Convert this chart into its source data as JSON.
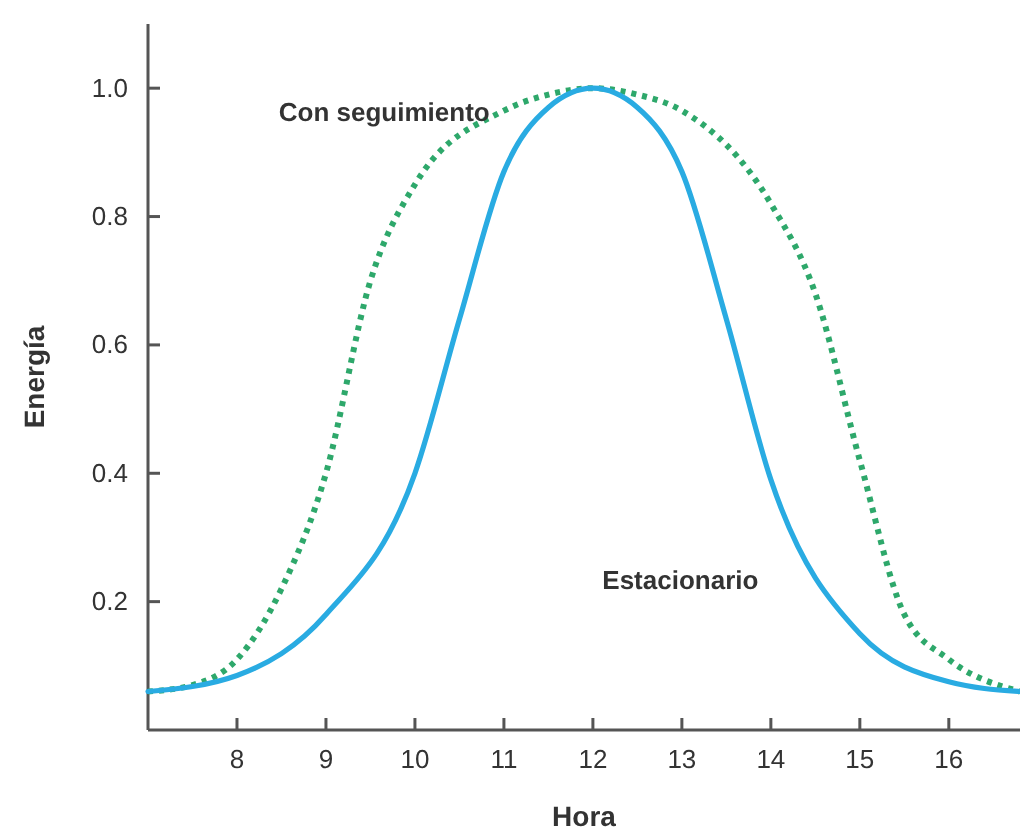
{
  "chart_data": {
    "type": "line",
    "xlabel": "Hora",
    "ylabel": "Energía",
    "xlim": [
      7,
      16.8
    ],
    "ylim": [
      0,
      1.1
    ],
    "xticks": [
      8,
      9,
      10,
      11,
      12,
      13,
      14,
      15,
      16
    ],
    "yticks": [
      {
        "value": 0.2,
        "label": "0.2"
      },
      {
        "value": 0.4,
        "label": "0.4"
      },
      {
        "value": 0.6,
        "label": "0.6"
      },
      {
        "value": 0.8,
        "label": "0.8"
      },
      {
        "value": 1,
        "label": "1.0"
      }
    ],
    "grid": false,
    "legend": false,
    "marker": "none",
    "series": [
      {
        "name": "Con seguimiento",
        "color": "#2ea86b",
        "line_style": "dotted",
        "x": [
          7,
          7.5,
          8,
          8.5,
          9,
          9.5,
          10,
          11,
          11.5,
          12,
          12.5,
          13,
          14,
          14.5,
          15,
          15.5,
          16,
          16.8
        ],
        "values": [
          0.06,
          0.07,
          0.11,
          0.22,
          0.4,
          0.7,
          0.85,
          0.965,
          0.99,
          1.0,
          0.99,
          0.965,
          0.82,
          0.68,
          0.42,
          0.18,
          0.11,
          0.06
        ]
      },
      {
        "name": "Estacionario",
        "color": "#29abe2",
        "line_style": "solid",
        "x": [
          7,
          8,
          9,
          10,
          10.5,
          11,
          11.5,
          12,
          12.5,
          13,
          13.5,
          14,
          15,
          16,
          16.8
        ],
        "values": [
          0.06,
          0.085,
          0.18,
          0.4,
          0.64,
          0.87,
          0.97,
          1.0,
          0.97,
          0.87,
          0.64,
          0.39,
          0.15,
          0.075,
          0.06
        ]
      }
    ]
  }
}
